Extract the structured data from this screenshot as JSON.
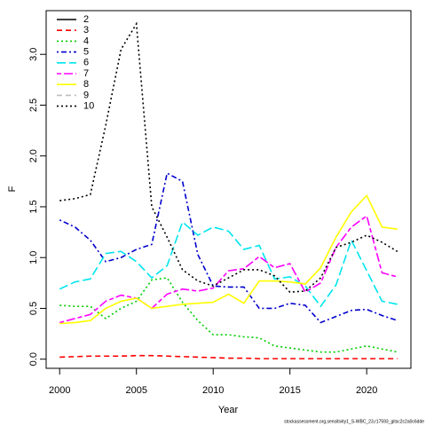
{
  "chart_data": {
    "type": "line",
    "x_label": "Year",
    "y_label": "F",
    "footer": "stockassessment.org,sensitivity1_S-WBC_23,r17593_gitsc2c2a0c6dde",
    "x": [
      2000,
      2001,
      2002,
      2003,
      2004,
      2005,
      2006,
      2007,
      2008,
      2009,
      2010,
      2011,
      2012,
      2013,
      2014,
      2015,
      2016,
      2017,
      2018,
      2019,
      2020,
      2021,
      2022
    ],
    "xlim": [
      1999.12,
      2022.88
    ],
    "xticks": [
      2000,
      2005,
      2010,
      2015,
      2020
    ],
    "ylim": [
      -0.09,
      3.43
    ],
    "yticks": [
      {
        "value": 0,
        "label": "0.0"
      },
      0.5,
      {
        "value": 1,
        "label": "1.0"
      },
      1.5,
      {
        "value": 2,
        "label": "2.0"
      },
      2.5,
      {
        "value": 3,
        "label": "3.0"
      }
    ],
    "legend": "top-left",
    "series": [
      {
        "name": "2",
        "color": "#000000",
        "linestyle": "solid",
        "values": [
          null,
          null,
          null,
          null,
          null,
          null,
          null,
          null,
          null,
          null,
          null,
          null,
          null,
          null,
          null,
          null,
          null,
          null,
          null,
          null,
          null,
          null,
          null
        ]
      },
      {
        "name": "3",
        "color": "#ff0000",
        "linestyle": "dashed",
        "values": [
          0.02,
          0.025,
          0.03,
          0.03,
          0.03,
          0.035,
          0.035,
          0.03,
          0.025,
          0.02,
          0.015,
          0.01,
          0.01,
          0.005,
          0.005,
          0.005,
          0.005,
          0.005,
          0.005,
          0.005,
          0.005,
          0.005,
          0.005
        ]
      },
      {
        "name": "4",
        "color": "#00cd00",
        "linestyle": "dotted",
        "values": [
          0.53,
          0.52,
          0.52,
          0.4,
          0.5,
          0.57,
          0.78,
          0.8,
          0.56,
          0.38,
          0.24,
          0.24,
          0.22,
          0.21,
          0.13,
          0.11,
          0.09,
          0.07,
          0.07,
          0.1,
          0.13,
          0.1,
          0.07
        ]
      },
      {
        "name": "5",
        "color": "#0000cd",
        "linestyle": "dotdash",
        "values": [
          1.37,
          1.3,
          1.17,
          0.96,
          1.0,
          1.08,
          1.13,
          1.83,
          1.75,
          1.03,
          0.72,
          0.71,
          0.71,
          0.5,
          0.5,
          0.55,
          0.53,
          0.36,
          0.42,
          0.48,
          0.49,
          0.43,
          0.38
        ]
      },
      {
        "name": "6",
        "color": "#00e5ee",
        "linestyle": "longdash",
        "values": [
          0.69,
          0.76,
          0.79,
          1.04,
          1.06,
          0.96,
          0.8,
          0.92,
          1.35,
          1.22,
          1.3,
          1.26,
          1.08,
          1.12,
          0.79,
          0.81,
          0.72,
          0.52,
          0.73,
          1.17,
          0.87,
          0.57,
          0.54
        ]
      },
      {
        "name": "7",
        "color": "#ff00ff",
        "linestyle": "twodash",
        "values": [
          0.36,
          0.4,
          0.44,
          0.57,
          0.63,
          0.6,
          0.5,
          0.64,
          0.69,
          0.67,
          0.7,
          0.87,
          0.89,
          1.01,
          0.9,
          0.94,
          0.66,
          0.75,
          1.1,
          1.3,
          1.41,
          0.85,
          0.81
        ]
      },
      {
        "name": "8",
        "color": "#ffff00",
        "linestyle": "solid",
        "values": [
          0.35,
          0.36,
          0.38,
          0.5,
          0.57,
          0.6,
          0.5,
          0.52,
          0.54,
          0.55,
          0.56,
          0.64,
          0.55,
          0.77,
          0.77,
          0.76,
          0.74,
          0.9,
          1.2,
          1.45,
          1.61,
          1.3,
          1.28
        ]
      },
      {
        "name": "9",
        "color": "#bebebe",
        "linestyle": "dashed",
        "values": [
          null,
          null,
          null,
          null,
          null,
          null,
          null,
          null,
          null,
          null,
          null,
          null,
          null,
          null,
          null,
          null,
          null,
          null,
          null,
          null,
          null,
          null,
          null
        ]
      },
      {
        "name": "10",
        "color": "#000000",
        "linestyle": "dotted",
        "values": [
          1.56,
          1.58,
          1.62,
          2.3,
          3.05,
          3.3,
          1.5,
          1.2,
          0.88,
          0.77,
          0.72,
          0.8,
          0.88,
          0.88,
          0.82,
          0.66,
          0.67,
          0.8,
          1.1,
          1.15,
          1.22,
          1.15,
          1.06
        ]
      }
    ]
  }
}
